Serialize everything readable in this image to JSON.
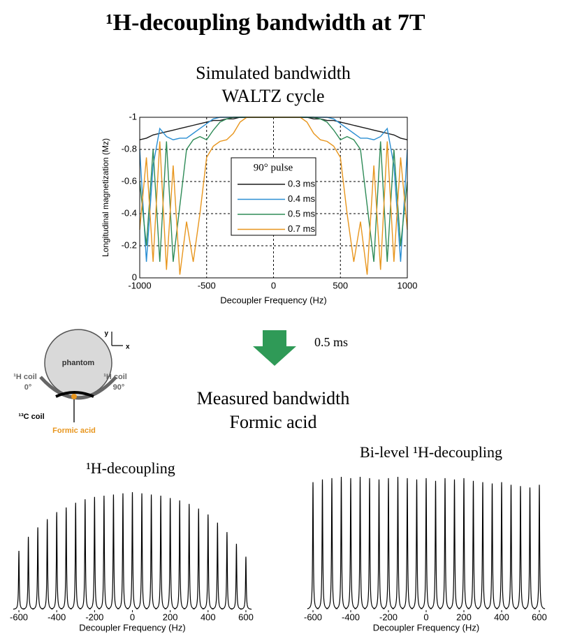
{
  "title": "¹H-decoupling bandwidth at 7T",
  "arrow_label": "0.5 ms",
  "measured_heading": [
    "Measured bandwidth",
    "Formic acid"
  ],
  "diagram": {
    "phantom": "phantom",
    "axis_y": "y",
    "axis_x": "x",
    "coil_left": [
      "¹H coil",
      "0°"
    ],
    "coil_right": [
      "¹H coil",
      "90°"
    ],
    "c13_coil": "¹³C coil",
    "sample": "Formic acid"
  },
  "chart_data": [
    {
      "type": "line",
      "title": "Simulated bandwidth",
      "subtitle": "WALTZ cycle",
      "x_label": "Decoupler Frequency (Hz)",
      "y_label": "Longitudinal magnetization (Mz)",
      "legend_title": "90° pulse",
      "grid": true,
      "xlim": [
        -1000,
        1000
      ],
      "xticks": [
        -1000,
        -500,
        0,
        500,
        1000
      ],
      "ylim": [
        0,
        -1
      ],
      "yticks": [
        -1,
        -0.8,
        -0.6,
        -0.4,
        -0.2,
        0
      ],
      "x": [
        -1000,
        -950,
        -900,
        -850,
        -800,
        -750,
        -700,
        -650,
        -600,
        -550,
        -500,
        -450,
        -400,
        -350,
        -300,
        -250,
        -200,
        -150,
        -100,
        -50,
        0,
        50,
        100,
        150,
        200,
        250,
        300,
        350,
        400,
        450,
        500,
        550,
        600,
        650,
        700,
        750,
        800,
        850,
        900,
        950,
        1000
      ],
      "series": [
        {
          "name": "0.3 ms",
          "color": "#1a1a1a",
          "values": [
            -0.86,
            -0.87,
            -0.89,
            -0.9,
            -0.91,
            -0.92,
            -0.93,
            -0.94,
            -0.95,
            -0.96,
            -0.97,
            -0.98,
            -0.98,
            -0.99,
            -0.99,
            -1,
            -1,
            -1,
            -1,
            -1,
            -1,
            -1,
            -1,
            -1,
            -1,
            -1,
            -0.99,
            -0.99,
            -0.98,
            -0.98,
            -0.97,
            -0.96,
            -0.95,
            -0.94,
            -0.93,
            -0.92,
            -0.91,
            -0.9,
            -0.89,
            -0.87,
            -0.86
          ]
        },
        {
          "name": "0.4 ms",
          "color": "#2b8fd3",
          "values": [
            -0.8,
            -0.1,
            -0.7,
            -0.93,
            -0.88,
            -0.86,
            -0.87,
            -0.87,
            -0.9,
            -0.93,
            -0.96,
            -0.99,
            -1,
            -1,
            -1,
            -1,
            -1,
            -1,
            -1,
            -1,
            -1,
            -1,
            -1,
            -1,
            -1,
            -1,
            -1,
            -1,
            -1,
            -0.99,
            -0.96,
            -0.93,
            -0.9,
            -0.87,
            -0.87,
            -0.86,
            -0.88,
            -0.93,
            -0.7,
            -0.1,
            -0.8
          ]
        },
        {
          "name": "0.5 ms",
          "color": "#2e8b57",
          "values": [
            -0.6,
            -0.2,
            -0.8,
            -0.1,
            -0.85,
            -0.1,
            -0.45,
            -0.8,
            -0.86,
            -0.88,
            -0.86,
            -0.92,
            -0.97,
            -0.99,
            -1,
            -1,
            -1,
            -1,
            -1,
            -1,
            -1,
            -1,
            -1,
            -1,
            -1,
            -1,
            -1,
            -0.99,
            -0.97,
            -0.92,
            -0.86,
            -0.88,
            -0.86,
            -0.8,
            -0.45,
            -0.1,
            -0.85,
            -0.1,
            -0.8,
            -0.2,
            -0.6
          ]
        },
        {
          "name": "0.7 ms",
          "color": "#e8961e",
          "values": [
            -0.3,
            -0.75,
            -0.1,
            -0.85,
            -0.05,
            -0.7,
            -0.02,
            -0.35,
            -0.1,
            -0.4,
            -0.75,
            -0.82,
            -0.85,
            -0.86,
            -0.9,
            -0.97,
            -1,
            -1,
            -1,
            -1,
            -1,
            -1,
            -1,
            -1,
            -1,
            -0.97,
            -0.9,
            -0.86,
            -0.85,
            -0.82,
            -0.75,
            -0.4,
            -0.1,
            -0.35,
            -0.02,
            -0.7,
            -0.05,
            -0.85,
            -0.1,
            -0.75,
            -0.3
          ]
        }
      ]
    },
    {
      "type": "spectrum",
      "title": "¹H-decoupling",
      "x_label": "Decoupler Frequency (Hz)",
      "color": "#000000",
      "xlim": [
        -650,
        650
      ],
      "xticks": [
        -600,
        -400,
        -200,
        0,
        200,
        400,
        600
      ],
      "x": [
        -600,
        -550,
        -500,
        -450,
        -400,
        -350,
        -300,
        -250,
        -200,
        -150,
        -100,
        -50,
        0,
        50,
        100,
        150,
        200,
        250,
        300,
        350,
        400,
        450,
        500,
        550,
        600
      ],
      "values": [
        0.5,
        0.62,
        0.7,
        0.77,
        0.83,
        0.87,
        0.91,
        0.94,
        0.96,
        0.97,
        0.98,
        0.99,
        1,
        0.99,
        0.98,
        0.97,
        0.95,
        0.93,
        0.9,
        0.86,
        0.81,
        0.74,
        0.66,
        0.56,
        0.45
      ]
    },
    {
      "type": "spectrum",
      "title": "Bi-level ¹H-decoupling",
      "x_label": "Decoupler Frequency (Hz)",
      "color": "#000000",
      "xlim": [
        -650,
        650
      ],
      "xticks": [
        -600,
        -400,
        -200,
        0,
        200,
        400,
        600
      ],
      "x": [
        -600,
        -550,
        -500,
        -450,
        -400,
        -350,
        -300,
        -250,
        -200,
        -150,
        -100,
        -50,
        0,
        50,
        100,
        150,
        200,
        250,
        300,
        350,
        400,
        450,
        500,
        550,
        600
      ],
      "values": [
        0.96,
        0.98,
        0.99,
        1,
        0.99,
        1,
        0.99,
        0.98,
        0.99,
        1,
        0.99,
        0.98,
        0.99,
        0.97,
        0.99,
        0.98,
        0.99,
        0.97,
        0.96,
        0.95,
        0.96,
        0.94,
        0.93,
        0.92,
        0.94
      ]
    }
  ]
}
